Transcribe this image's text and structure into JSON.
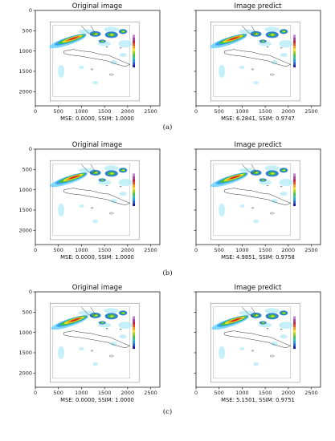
{
  "figure": {
    "rows": [
      {
        "caption": "(a)",
        "panels": [
          {
            "title": "Original image",
            "metric": "MSE: 0.0000, SSIM: 1.0000"
          },
          {
            "title": "Image predict",
            "metric": "MSE: 6.2841, SSIM: 0.9747"
          }
        ]
      },
      {
        "caption": "(b)",
        "panels": [
          {
            "title": "Original image",
            "metric": "MSE: 0.0000, SSIM: 1.0000"
          },
          {
            "title": "Image predict",
            "metric": "MSE: 4.9851, SSIM: 0.9758"
          }
        ]
      },
      {
        "caption": "(c)",
        "panels": [
          {
            "title": "Original image",
            "metric": "MSE: 0.0000, SSIM: 1.0000"
          },
          {
            "title": "Image predict",
            "metric": "MSE: 5.1501, SSIM: 0.9751"
          }
        ]
      }
    ],
    "axes": {
      "x_ticks": [
        "0",
        "500",
        "1000",
        "1500",
        "2000",
        "2500"
      ],
      "y_ticks": [
        "0",
        "500",
        "1000",
        "1500",
        "2000"
      ],
      "xlim": [
        0,
        2700
      ],
      "ylim": [
        0,
        2350
      ]
    },
    "colorbar_colors": [
      "#1a1aa0",
      "#2060d0",
      "#20a0e0",
      "#30c0a0",
      "#50c040",
      "#a0d020",
      "#f0e020",
      "#f0a020",
      "#e05020",
      "#c02040",
      "#a040a0",
      "#c080d0"
    ]
  }
}
